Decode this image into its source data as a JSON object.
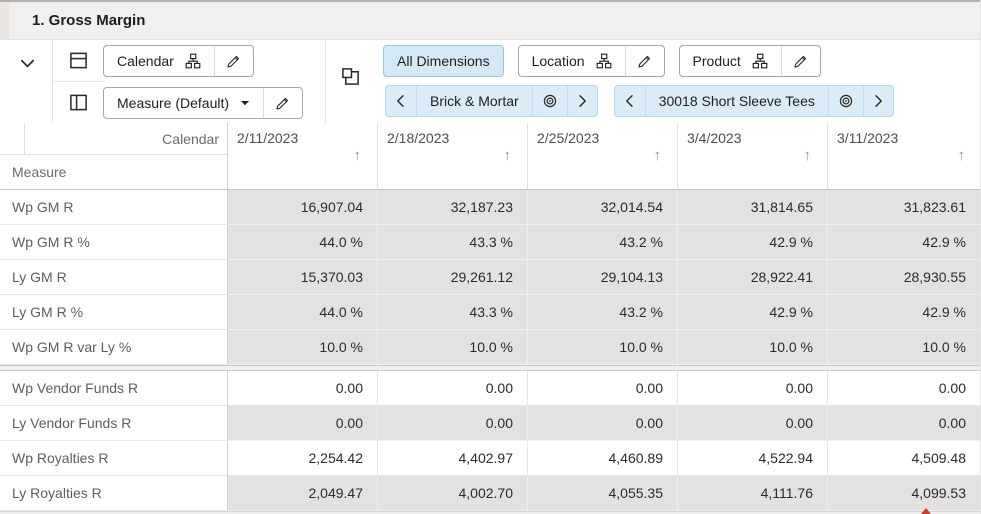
{
  "title": "1. Gross Margin",
  "toolbar": {
    "row_axis": {
      "label": "Calendar"
    },
    "col_axis": {
      "label": "Measure (Default)"
    },
    "all_dimensions_label": "All Dimensions",
    "location": {
      "label": "Location"
    },
    "product": {
      "label": "Product"
    },
    "page_edges": [
      {
        "label": "Brick & Mortar"
      },
      {
        "label": "30018 Short Sleeve Tees"
      }
    ]
  },
  "grid": {
    "corner_top_label": "Calendar",
    "corner_bottom_label": "Measure",
    "columns": [
      "2/11/2023",
      "2/18/2023",
      "2/25/2023",
      "3/4/2023",
      "3/11/2023"
    ],
    "rows": [
      {
        "label": "Wp GM R",
        "editable": false,
        "separator_after": false,
        "values": [
          "16,907.04",
          "32,187.23",
          "32,014.54",
          "31,814.65",
          "31,823.61"
        ]
      },
      {
        "label": "Wp GM R %",
        "editable": false,
        "separator_after": false,
        "values": [
          "44.0 %",
          "43.3 %",
          "43.2 %",
          "42.9 %",
          "42.9 %"
        ]
      },
      {
        "label": "Ly GM R",
        "editable": false,
        "separator_after": false,
        "values": [
          "15,370.03",
          "29,261.12",
          "29,104.13",
          "28,922.41",
          "28,930.55"
        ]
      },
      {
        "label": "Ly GM R %",
        "editable": false,
        "separator_after": false,
        "values": [
          "44.0 %",
          "43.3 %",
          "43.2 %",
          "42.9 %",
          "42.9 %"
        ]
      },
      {
        "label": "Wp GM R var Ly %",
        "editable": false,
        "separator_after": true,
        "values": [
          "10.0 %",
          "10.0 %",
          "10.0 %",
          "10.0 %",
          "10.0 %"
        ]
      },
      {
        "label": "Wp Vendor Funds R",
        "editable": true,
        "separator_after": false,
        "values": [
          "0.00",
          "0.00",
          "0.00",
          "0.00",
          "0.00"
        ]
      },
      {
        "label": "Ly Vendor Funds R",
        "editable": false,
        "separator_after": false,
        "values": [
          "0.00",
          "0.00",
          "0.00",
          "0.00",
          "0.00"
        ]
      },
      {
        "label": "Wp Royalties R",
        "editable": true,
        "separator_after": false,
        "values": [
          "2,254.42",
          "4,402.97",
          "4,460.89",
          "4,522.94",
          "4,509.48"
        ]
      },
      {
        "label": "Ly Royalties R",
        "editable": false,
        "separator_after": false,
        "values": [
          "2,049.47",
          "4,002.70",
          "4,055.35",
          "4,111.76",
          "4,099.53"
        ]
      }
    ]
  },
  "icons": {
    "sort_ascending": "↑"
  },
  "colors": {
    "accent_blue_bg": "#d4e9f5",
    "accent_blue_border": "#9bc5dd",
    "page_tile_bg": "#d9ecf7",
    "readonly_cell_bg": "#e3e2e0",
    "title_bar_bg": "#f2f0ee",
    "alert_red": "#cc3a32"
  }
}
